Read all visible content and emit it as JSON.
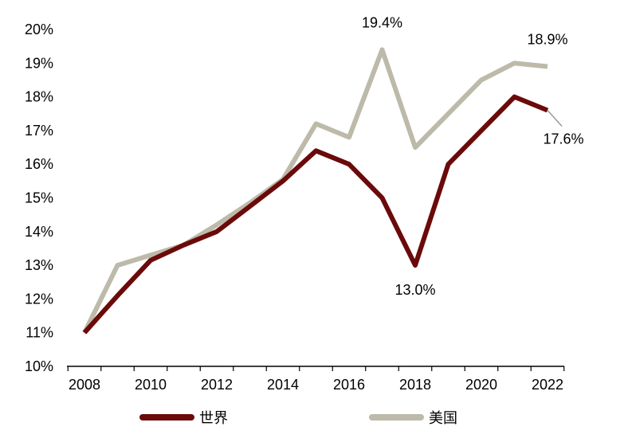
{
  "chart_data": {
    "type": "line",
    "x": [
      2008,
      2009,
      2010,
      2011,
      2012,
      2013,
      2014,
      2015,
      2016,
      2017,
      2018,
      2019,
      2020,
      2021,
      2022
    ],
    "x_tick_labels": [
      "2008",
      "2010",
      "2012",
      "2014",
      "2016",
      "2018",
      "2020",
      "2022"
    ],
    "y_tick_labels": [
      "10%",
      "11%",
      "12%",
      "13%",
      "14%",
      "15%",
      "16%",
      "17%",
      "18%",
      "19%",
      "20%"
    ],
    "ylim": [
      10,
      20
    ],
    "grid": false,
    "legend_position": "bottom",
    "series": [
      {
        "name": "世界",
        "color": "#6b0a0a",
        "values": [
          11.0,
          12.1,
          13.15,
          13.6,
          14.0,
          14.75,
          15.5,
          16.4,
          16.0,
          15.0,
          13.0,
          16.0,
          17.0,
          18.0,
          17.6
        ]
      },
      {
        "name": "美国",
        "color": "#bdbaaa",
        "values": [
          11.0,
          13.0,
          13.3,
          13.6,
          14.2,
          14.85,
          15.55,
          17.2,
          16.8,
          19.4,
          16.5,
          17.5,
          18.5,
          19.0,
          18.9
        ]
      }
    ],
    "annotations": [
      {
        "text": "19.4%",
        "series": "美国",
        "x": 2017
      },
      {
        "text": "18.9%",
        "series": "美国",
        "x": 2022
      },
      {
        "text": "17.6%",
        "series": "世界",
        "x": 2022
      },
      {
        "text": "13.0%",
        "series": "世界",
        "x": 2018
      }
    ]
  }
}
